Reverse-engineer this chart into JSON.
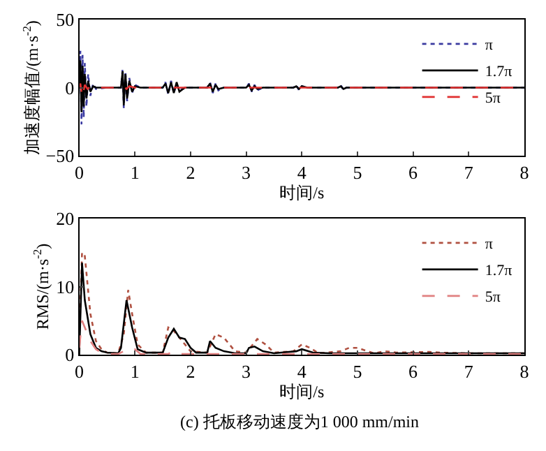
{
  "chart_data": [
    {
      "type": "line",
      "xlabel": "时间/s",
      "ylabel": "加速度幅值/(m·s$^{-2}$)",
      "xlim": [
        0,
        8
      ],
      "xticks": [
        0,
        1,
        2,
        3,
        4,
        5,
        6,
        7,
        8
      ],
      "ylim": [
        -50,
        50
      ],
      "yticks": [
        {
          "value": -50,
          "label": "−50"
        },
        0,
        50
      ],
      "legend": "top right",
      "series": [
        {
          "name": "π",
          "color": "#3a3aa0",
          "line_style": "dotted",
          "x": [
            0,
            0.02,
            0.04,
            0.06,
            0.08,
            0.1,
            0.13,
            0.16,
            0.2,
            0.25,
            0.3,
            0.5,
            0.75,
            0.78,
            0.8,
            0.83,
            0.86,
            0.9,
            0.95,
            1.0,
            1.1,
            1.5,
            1.55,
            1.6,
            1.65,
            1.7,
            1.75,
            1.8,
            1.9,
            2.3,
            2.35,
            2.4,
            2.45,
            2.5,
            2.6,
            3.0,
            3.05,
            3.1,
            3.15,
            3.2,
            3.3,
            3.85,
            3.9,
            3.95,
            4.0,
            4.1,
            4.65,
            4.7,
            4.75,
            4.8,
            5,
            8
          ],
          "values": [
            0,
            27,
            -27,
            24,
            -22,
            18,
            -14,
            10,
            -6,
            3,
            -1,
            0,
            0,
            14,
            -15,
            12,
            -10,
            7,
            -4,
            2,
            0,
            0,
            4,
            -5,
            5,
            -4,
            3,
            -2,
            0,
            0,
            4,
            -4,
            3,
            -2,
            0,
            0,
            3,
            -3,
            2,
            -2,
            0,
            0,
            2,
            -2,
            1,
            0,
            0,
            2,
            -2,
            0,
            0,
            0
          ]
        },
        {
          "name": "1.7π",
          "color": "#000000",
          "line_style": "solid",
          "x": [
            0,
            0.02,
            0.04,
            0.06,
            0.08,
            0.1,
            0.13,
            0.16,
            0.2,
            0.25,
            0.3,
            0.5,
            0.75,
            0.78,
            0.8,
            0.83,
            0.86,
            0.9,
            0.95,
            1.0,
            1.1,
            1.5,
            1.55,
            1.6,
            1.65,
            1.7,
            1.75,
            1.8,
            1.9,
            2.3,
            2.35,
            2.4,
            2.45,
            2.5,
            2.6,
            3.0,
            3.05,
            3.1,
            3.15,
            3.2,
            3.3,
            3.85,
            3.9,
            3.95,
            4.0,
            4.1,
            4.65,
            4.7,
            4.75,
            4.8,
            5,
            8
          ],
          "values": [
            0,
            20,
            -18,
            16,
            -14,
            10,
            -8,
            5,
            -3,
            1,
            0,
            0,
            0,
            12,
            -13,
            10,
            -8,
            5,
            -3,
            1,
            0,
            0,
            3,
            -4,
            4,
            -4,
            4,
            -3,
            0,
            0,
            3,
            -3,
            2,
            -1,
            0,
            0,
            2,
            -2,
            1,
            -1,
            0,
            0,
            1,
            -1,
            1,
            0,
            0,
            1,
            -1,
            0,
            0,
            0
          ]
        },
        {
          "name": "5π",
          "color": "#e03030",
          "line_style": "dashed",
          "x": [
            0,
            0.02,
            0.04,
            0.06,
            0.08,
            0.1,
            0.15,
            0.2,
            0.3,
            0.75,
            0.8,
            0.85,
            0.9,
            1.0,
            8
          ],
          "values": [
            0,
            3,
            -3,
            2,
            -2,
            2,
            -1,
            1,
            0,
            0,
            1,
            -1,
            1,
            0,
            0
          ]
        }
      ]
    },
    {
      "type": "line",
      "xlabel": "时间/s",
      "ylabel": "RMS/(m·s$^{-2}$)",
      "xlim": [
        0,
        8
      ],
      "xticks": [
        0,
        1,
        2,
        3,
        4,
        5,
        6,
        7,
        8
      ],
      "ylim": [
        0,
        20
      ],
      "yticks": [
        0,
        10,
        20
      ],
      "legend": "top right",
      "annotations": [
        "(c) 托板移动速度为1 000 mm/min"
      ],
      "series": [
        {
          "name": "π",
          "color": "#b05040",
          "line_style": "dotted",
          "x": [
            0,
            0.05,
            0.1,
            0.2,
            0.3,
            0.4,
            0.5,
            0.7,
            0.8,
            0.88,
            0.95,
            1.05,
            1.2,
            1.5,
            1.6,
            1.7,
            1.85,
            2.0,
            2.3,
            2.45,
            2.6,
            2.8,
            3.0,
            3.2,
            3.35,
            3.5,
            3.85,
            4.0,
            4.15,
            4.3,
            4.7,
            4.85,
            5.0,
            5.3,
            5.5,
            5.7,
            6.3,
            6.5,
            7,
            8
          ],
          "values": [
            2,
            15,
            14.5,
            6,
            2,
            0.8,
            0.3,
            0.2,
            3,
            9.5,
            6,
            1.5,
            0.3,
            0.3,
            4,
            3.5,
            2,
            0.5,
            0.3,
            3,
            2.5,
            0.5,
            0.3,
            2.3,
            1.5,
            0.3,
            0.5,
            1.5,
            1,
            0.2,
            0.5,
            1,
            1,
            0.2,
            0.5,
            0.3,
            0.4,
            0.3,
            0.2,
            0.2
          ]
        },
        {
          "name": "1.7π",
          "color": "#000000",
          "line_style": "solid",
          "x": [
            0,
            0.05,
            0.1,
            0.2,
            0.3,
            0.4,
            0.5,
            0.7,
            0.75,
            0.85,
            0.95,
            1.05,
            1.2,
            1.5,
            1.6,
            1.7,
            1.8,
            1.9,
            2.0,
            2.1,
            2.3,
            2.35,
            2.45,
            2.6,
            2.8,
            3.0,
            3.05,
            3.15,
            3.3,
            3.5,
            3.9,
            4.0,
            4.2,
            4.5,
            5,
            6,
            7,
            8
          ],
          "values": [
            0,
            13.5,
            8,
            3,
            1,
            0.5,
            0.3,
            0.2,
            1,
            8,
            4,
            0.8,
            0.3,
            0.3,
            2.5,
            3.8,
            2.5,
            2.3,
            1,
            0.3,
            0.3,
            2,
            1,
            0.5,
            0.2,
            0.2,
            1,
            1.2,
            0.5,
            0.2,
            0.5,
            0.8,
            0.3,
            0.2,
            0.2,
            0.2,
            0.2,
            0.2
          ]
        },
        {
          "name": "5π",
          "color": "#e08080",
          "line_style": "dashed",
          "x": [
            0,
            0.05,
            0.1,
            0.2,
            0.3,
            0.4,
            0.5,
            0.7,
            0.8,
            0.9,
            1.0,
            1.1,
            1.6,
            1.7,
            1.8,
            8
          ],
          "values": [
            1,
            5,
            4,
            2,
            0.8,
            0.3,
            0.1,
            0.1,
            0.5,
            1,
            0.8,
            0.1,
            0.1,
            0.5,
            0.1,
            0.1
          ]
        }
      ]
    }
  ]
}
